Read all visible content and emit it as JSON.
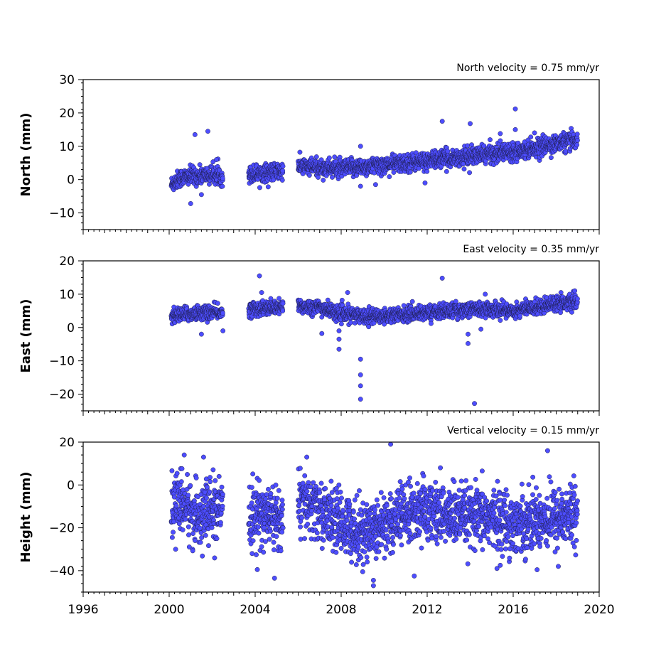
{
  "chart_data": [
    {
      "type": "scatter",
      "ylabel": "North (mm)",
      "annotation": "North velocity = 0.75 mm/yr",
      "xlim": [
        1996,
        2020
      ],
      "ylim": [
        -15,
        30
      ],
      "yticks": [
        -10,
        0,
        10,
        20,
        30
      ],
      "marker_color": "#4d4dff",
      "segments": [
        {
          "x": [
            2000.1,
            2000.5,
            2001.0,
            2001.5,
            2002.0,
            2002.5
          ],
          "y": [
            -1.5,
            0.5,
            1.0,
            1.2,
            1.5,
            1.0
          ]
        },
        {
          "x": [
            2003.7,
            2004.2,
            2004.7,
            2005.3
          ],
          "y": [
            1.5,
            2.0,
            2.2,
            2.5
          ]
        },
        {
          "x": [
            2006.0,
            2007.0,
            2008.0,
            2009.0,
            2010.0,
            2011.0,
            2012.0,
            2013.0,
            2014.0,
            2015.0,
            2016.0,
            2017.0,
            2018.0,
            2019.0
          ],
          "y": [
            4.0,
            3.6,
            3.2,
            3.8,
            4.4,
            5.0,
            5.6,
            6.4,
            7.0,
            7.8,
            8.6,
            9.6,
            10.8,
            12.0
          ]
        }
      ],
      "noise_sd": 1.3,
      "outliers": [
        {
          "x": 2001.2,
          "y": 13.5
        },
        {
          "x": 2001.8,
          "y": 14.5
        },
        {
          "x": 2001.0,
          "y": -7.2
        },
        {
          "x": 2001.5,
          "y": -4.5
        },
        {
          "x": 2002.2,
          "y": 6.0
        },
        {
          "x": 2008.9,
          "y": 10.0
        },
        {
          "x": 2008.9,
          "y": -2.0
        },
        {
          "x": 2011.9,
          "y": -1.0
        },
        {
          "x": 2012.7,
          "y": 17.5
        },
        {
          "x": 2014.0,
          "y": 16.8
        },
        {
          "x": 2015.4,
          "y": 13.8
        },
        {
          "x": 2016.1,
          "y": 21.2
        },
        {
          "x": 2016.1,
          "y": 15.0
        },
        {
          "x": 2009.6,
          "y": -1.5
        }
      ]
    },
    {
      "type": "scatter",
      "ylabel": "East (mm)",
      "annotation": "East velocity = 0.35 mm/yr",
      "xlim": [
        1996,
        2020
      ],
      "ylim": [
        -25,
        20
      ],
      "yticks": [
        -20,
        -10,
        0,
        10,
        20
      ],
      "marker_color": "#4d4dff",
      "segments": [
        {
          "x": [
            2000.1,
            2000.8,
            2001.5,
            2002.5
          ],
          "y": [
            3.5,
            4.0,
            4.5,
            4.5
          ]
        },
        {
          "x": [
            2003.7,
            2004.5,
            2005.3
          ],
          "y": [
            5.5,
            5.8,
            6.0
          ]
        },
        {
          "x": [
            2006.0,
            2007.0,
            2008.0,
            2009.0,
            2010.0,
            2011.0,
            2012.0,
            2013.0,
            2014.0,
            2015.0,
            2016.0,
            2017.0,
            2018.0,
            2019.0
          ],
          "y": [
            6.5,
            6.0,
            4.0,
            3.5,
            3.5,
            4.0,
            4.5,
            5.0,
            5.5,
            5.5,
            5.0,
            6.0,
            7.5,
            7.5
          ]
        }
      ],
      "noise_sd": 1.1,
      "outliers": [
        {
          "x": 2004.2,
          "y": 15.5
        },
        {
          "x": 2004.3,
          "y": 10.5
        },
        {
          "x": 2001.5,
          "y": -2.0
        },
        {
          "x": 2002.5,
          "y": -1.0
        },
        {
          "x": 2007.1,
          "y": -1.8
        },
        {
          "x": 2007.9,
          "y": -1.0
        },
        {
          "x": 2007.9,
          "y": -3.5
        },
        {
          "x": 2007.9,
          "y": -6.5
        },
        {
          "x": 2008.3,
          "y": 10.5
        },
        {
          "x": 2008.9,
          "y": -9.5
        },
        {
          "x": 2008.9,
          "y": -14.2
        },
        {
          "x": 2008.9,
          "y": -17.5
        },
        {
          "x": 2008.9,
          "y": -21.5
        },
        {
          "x": 2012.7,
          "y": 14.8
        },
        {
          "x": 2013.9,
          "y": -2.0
        },
        {
          "x": 2013.9,
          "y": -4.8
        },
        {
          "x": 2014.2,
          "y": -22.8
        },
        {
          "x": 2014.5,
          "y": -0.5
        },
        {
          "x": 2014.7,
          "y": 10.0
        }
      ]
    },
    {
      "type": "scatter",
      "ylabel": "Height (mm)",
      "annotation": "Vertical velocity = 0.15 mm/yr",
      "xlim": [
        1996,
        2020
      ],
      "ylim": [
        -50,
        20
      ],
      "yticks": [
        -40,
        -20,
        0,
        20
      ],
      "xticks": [
        1996,
        2000,
        2004,
        2008,
        2012,
        2016,
        2020
      ],
      "marker_color": "#4d4dff",
      "segments": [
        {
          "x": [
            2000.1,
            2000.6,
            2001.2,
            2001.8,
            2002.5
          ],
          "y": [
            -10,
            -8,
            -15,
            -12,
            -14
          ]
        },
        {
          "x": [
            2003.7,
            2004.3,
            2005.3
          ],
          "y": [
            -15,
            -13,
            -17
          ]
        },
        {
          "x": [
            2006.0,
            2007.0,
            2008.0,
            2009.0,
            2010.0,
            2011.0,
            2012.0,
            2013.0,
            2014.0,
            2015.0,
            2016.0,
            2017.0,
            2018.0,
            2019.0
          ],
          "y": [
            -8,
            -12,
            -18,
            -22,
            -18,
            -14,
            -12,
            -14,
            -16,
            -15,
            -18,
            -16,
            -15,
            -14
          ]
        }
      ],
      "noise_sd": 7.0,
      "outliers": [
        {
          "x": 2000.7,
          "y": 14.0
        },
        {
          "x": 2001.6,
          "y": 13.0
        },
        {
          "x": 2006.4,
          "y": 13.0
        },
        {
          "x": 2010.3,
          "y": 19.0
        },
        {
          "x": 2017.6,
          "y": 16.0
        },
        {
          "x": 2000.3,
          "y": -30.0
        },
        {
          "x": 2004.1,
          "y": -39.5
        },
        {
          "x": 2004.9,
          "y": -43.5
        },
        {
          "x": 2009.0,
          "y": -40.5
        },
        {
          "x": 2009.5,
          "y": -47.0
        },
        {
          "x": 2009.5,
          "y": -44.5
        },
        {
          "x": 2011.4,
          "y": -42.5
        },
        {
          "x": 2018.1,
          "y": -38.0
        },
        {
          "x": 2015.4,
          "y": -37.5
        }
      ]
    }
  ]
}
